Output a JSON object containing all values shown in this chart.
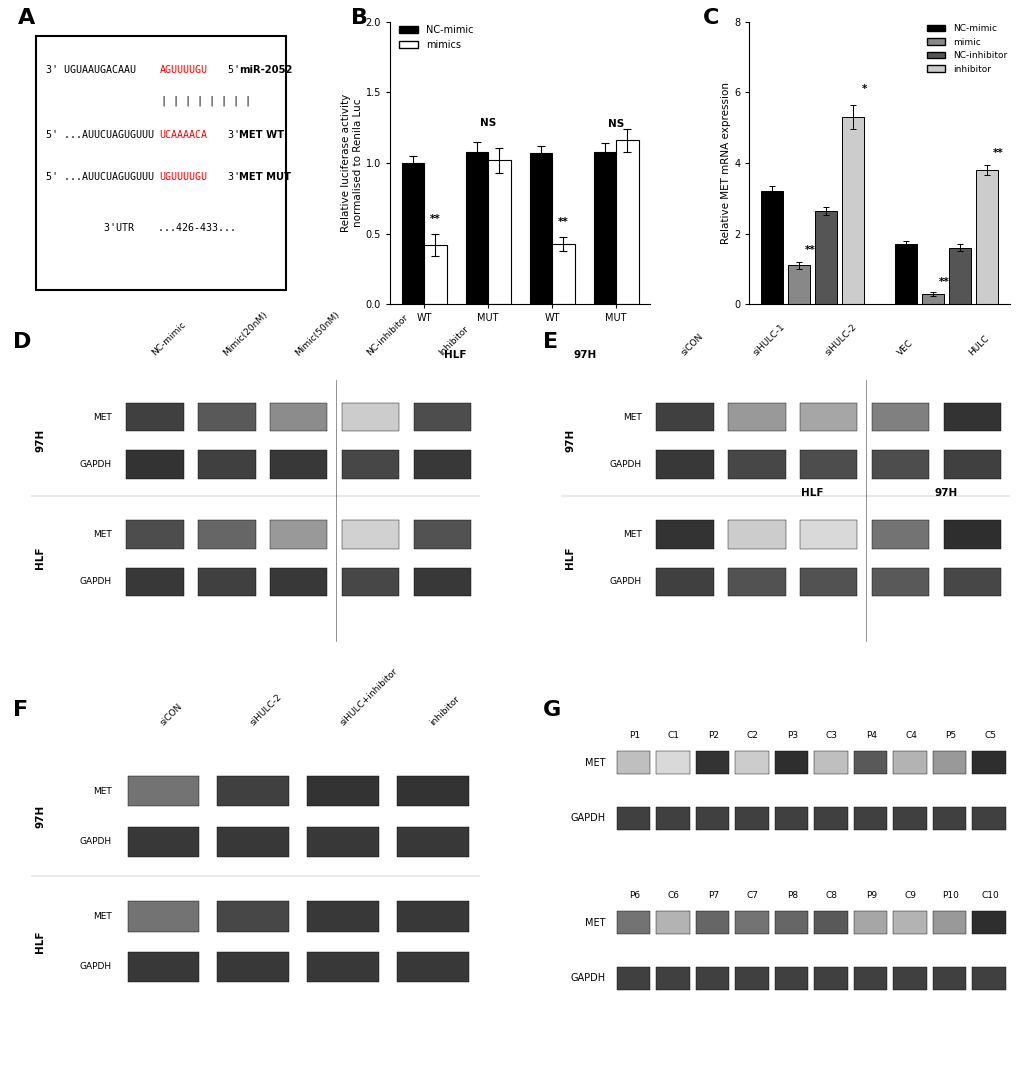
{
  "panel_A": {
    "mir_line": "3' UGUAAUGACAAU",
    "mir_red": "AGUUUUGU",
    "mir_end": " 5'",
    "mir_label": "miR-2052",
    "bars": "| | | | | | | |",
    "wt_start": "5' ...AUUCUAGUGUUU",
    "wt_red": "UCAAAACA",
    "wt_end": " 3'",
    "wt_label": "MET WT",
    "mut_start": "5' ...AUUCUAGUGUUU",
    "mut_red": "UGUUUUGU",
    "mut_end": " 3'",
    "mut_label": "MET MUT",
    "utr_label": "3'UTR    ...426-433..."
  },
  "panel_B": {
    "ylabel": "Relative luciferase activity\nnormalised to Renila Luc",
    "ylim": [
      0.0,
      2.0
    ],
    "yticks": [
      0.0,
      0.5,
      1.0,
      1.5,
      2.0
    ],
    "nc_mimic_vals": [
      1.0,
      1.08,
      1.07,
      1.08
    ],
    "nc_mimic_err": [
      0.05,
      0.07,
      0.05,
      0.06
    ],
    "mimic_vals": [
      0.42,
      1.02,
      0.43,
      1.16
    ],
    "mimic_err": [
      0.08,
      0.09,
      0.05,
      0.08
    ],
    "sig_labels": [
      "**",
      "NS",
      "**",
      "NS"
    ],
    "nc_color": "#000000",
    "mimic_color": "#ffffff",
    "legend_nc": "NC-mimic",
    "legend_mimic": "mimics"
  },
  "panel_C": {
    "ylabel": "Relative MET mRNA expression",
    "ylim": [
      0,
      8
    ],
    "yticks": [
      0,
      2,
      4,
      6,
      8
    ],
    "nc_mimic_vals": [
      3.2,
      1.7
    ],
    "nc_mimic_err": [
      0.15,
      0.1
    ],
    "mimic_vals": [
      1.1,
      0.3
    ],
    "mimic_err": [
      0.1,
      0.05
    ],
    "nc_inhib_vals": [
      2.65,
      1.6
    ],
    "nc_inhib_err": [
      0.12,
      0.1
    ],
    "inhib_vals": [
      5.3,
      3.8
    ],
    "inhib_err": [
      0.35,
      0.15
    ],
    "nc_mimic_color": "#000000",
    "mimic_color": "#888888",
    "nc_inhib_color": "#555555",
    "inhib_color": "#cccccc",
    "legend_items": [
      "NC-mimic",
      "mimic",
      "NC-inhibitor",
      "inhibitor"
    ]
  },
  "background": "#ffffff"
}
